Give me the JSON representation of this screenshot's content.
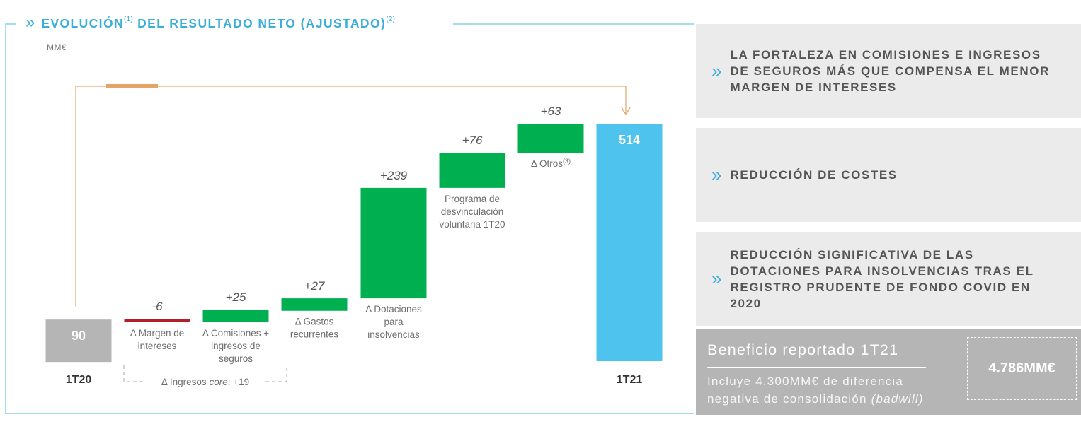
{
  "title": {
    "text": "EVOLUCIÓN",
    "note1": "(1)",
    "text2": "DEL RESULTADO NETO (AJUSTADO)",
    "note2": "(2)",
    "chevron": "»"
  },
  "unit": "MM€",
  "chart_data": {
    "type": "waterfall",
    "title": "EVOLUCIÓN DEL RESULTADO NETO (AJUSTADO)",
    "unit": "MM€",
    "ylim": [
      0,
      514
    ],
    "start": {
      "category": "1T20",
      "value": 90
    },
    "end": {
      "category": "1T21",
      "value": 514
    },
    "steps": [
      {
        "label_lines": [
          "Δ Margen de",
          "intereses"
        ],
        "delta": -6,
        "value_label": "-6"
      },
      {
        "label_lines": [
          "Δ Comisiones +",
          "ingresos de",
          "seguros"
        ],
        "delta": 25,
        "value_label": "+25"
      },
      {
        "label_lines": [
          "Δ Gastos",
          "recurrentes"
        ],
        "delta": 27,
        "value_label": "+27"
      },
      {
        "label_lines": [
          "Δ Dotaciones",
          "para",
          "insolvencias"
        ],
        "delta": 239,
        "value_label": "+239"
      },
      {
        "label_lines": [
          "Programa de",
          "desvinculación",
          "voluntaria 1T20"
        ],
        "delta": 76,
        "value_label": "+76"
      },
      {
        "label_lines": [
          "Δ Otros"
        ],
        "note": "(3)",
        "delta": 63,
        "value_label": "+63"
      }
    ],
    "bracket": {
      "prefix": "Δ Ingresos ",
      "italic": "core",
      "suffix": ": +19"
    },
    "colors": {
      "total_start": "#b5b5b5",
      "total_end": "#4ec3ee",
      "positive": "#00b050",
      "negative": "#b3202a",
      "connector": "#e2a76a"
    }
  },
  "panels": [
    {
      "lines": [
        "LA FORTALEZA EN COMISIONES E INGRESOS",
        "DE SEGUROS MÁS QUE COMPENSA EL MENOR",
        "MARGEN DE INTERESES"
      ]
    },
    {
      "lines": [
        "REDUCCIÓN DE COSTES"
      ]
    },
    {
      "lines": [
        "REDUCCIÓN SIGNIFICATIVA DE LAS",
        "DOTACIONES PARA INSOLVENCIAS TRAS EL",
        "REGISTRO PRUDENTE DE FONDO COVID EN",
        "2020"
      ]
    }
  ],
  "result": {
    "title": "Beneficio reportado 1T21",
    "desc_line1": "Incluye 4.300MM€ de diferencia",
    "desc_line2": "negativa de consolidación",
    "desc_italic": "(badwill)",
    "value": "4.786MM€"
  }
}
